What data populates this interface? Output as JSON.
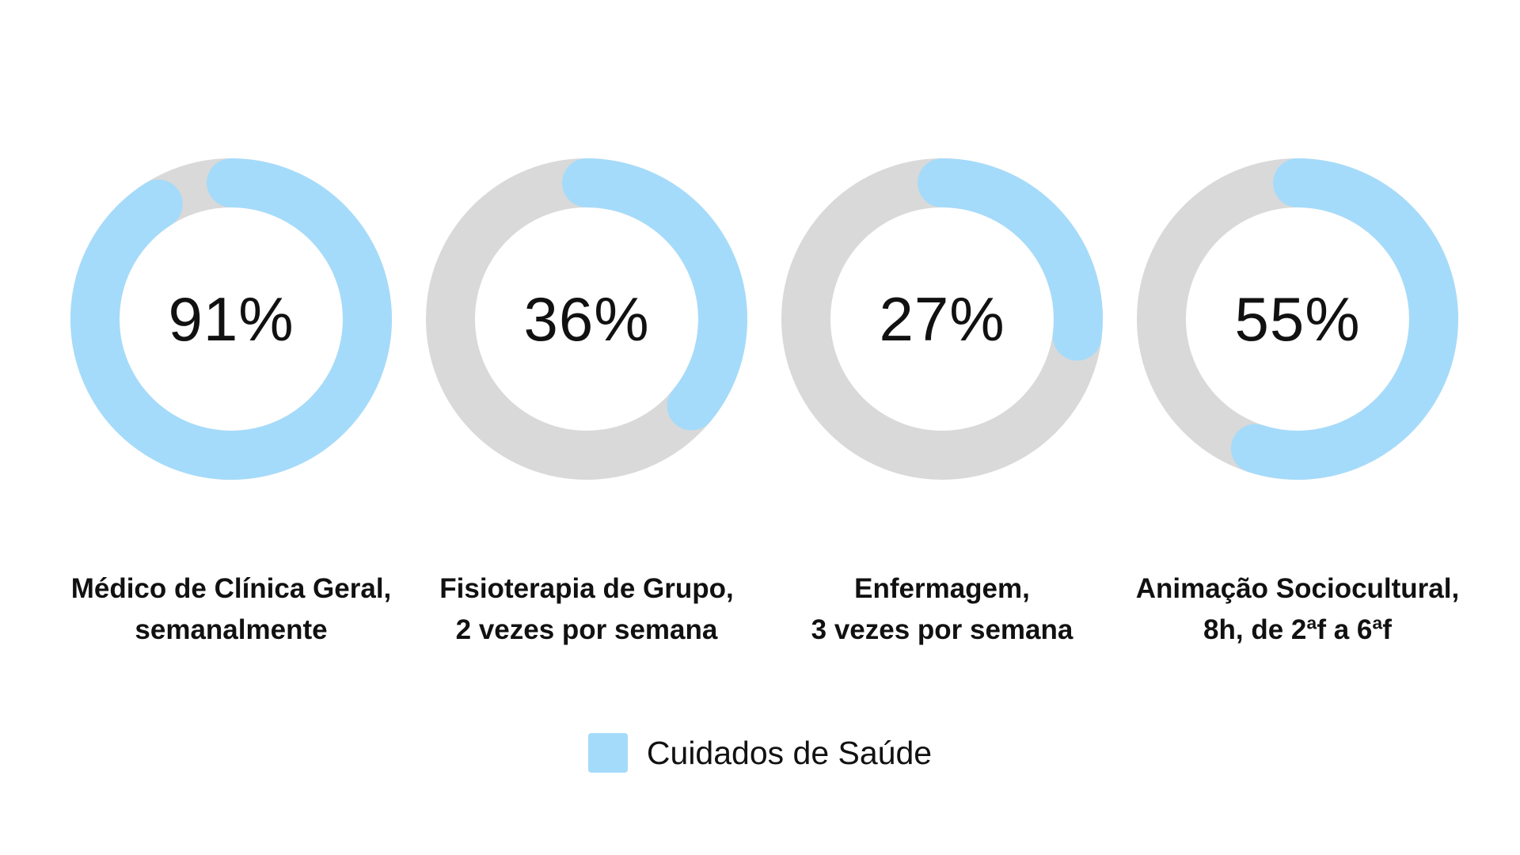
{
  "chart_data": {
    "type": "donut",
    "track_color": "#d9d9d9",
    "series_color": "#a5dbfa",
    "legend": {
      "label": "Cuidados de Saúde",
      "placement": "bottom-center"
    },
    "items": [
      {
        "value": 91,
        "label": "91%",
        "caption": [
          "Médico de Clínica Geral,",
          "semanalmente"
        ]
      },
      {
        "value": 36,
        "label": "36%",
        "caption": [
          "Fisioterapia de Grupo,",
          "2 vezes por semana"
        ]
      },
      {
        "value": 27,
        "label": "27%",
        "caption": [
          "Enfermagem,",
          "3 vezes por semana"
        ]
      },
      {
        "value": 55,
        "label": "55%",
        "caption": [
          "Animação Sociocultural,",
          "8h, de 2ªf a 6ªf"
        ]
      }
    ]
  }
}
